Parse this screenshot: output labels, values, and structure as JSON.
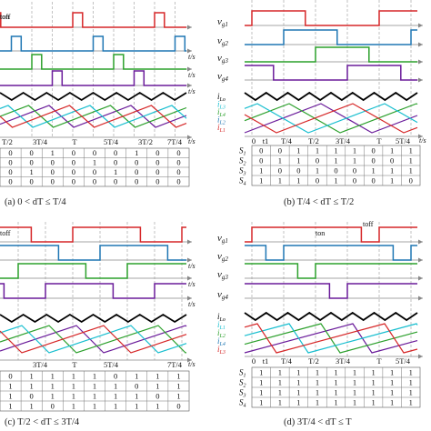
{
  "colors": {
    "red": "#d62728",
    "blue": "#1f77b4",
    "green": "#2ca02c",
    "purple": "#6a1b9a",
    "cyan": "#17becf",
    "black": "#000000",
    "axis": "#888888",
    "dash": "#9a9a9a"
  },
  "panels": [
    {
      "id": "a",
      "caption": "(a) 0 < dT ≤ T/4",
      "signal_labels": [],
      "current_labels": [],
      "time_unit": "t/s",
      "ton_label": "",
      "toff_label": "",
      "time_ticks": [
        "T/2",
        "3T/4",
        "T",
        "5T/4",
        "3T/2",
        "7T/4"
      ],
      "switch_labels": [],
      "table": [
        [
          "0",
          "0",
          "1",
          "0",
          "0",
          "0",
          "1",
          "0",
          "0"
        ],
        [
          "0",
          "0",
          "0",
          "0",
          "1",
          "0",
          "0",
          "0",
          "0"
        ],
        [
          "0",
          "1",
          "0",
          "0",
          "0",
          "1",
          "0",
          "0",
          "0"
        ],
        [
          "0",
          "0",
          "0",
          "0",
          "0",
          "0",
          "0",
          "0",
          "0"
        ]
      ]
    },
    {
      "id": "b",
      "caption": "(b) T/4 < dT ≤ T/2",
      "signal_labels": [
        "vg1",
        "vg2",
        "vg3",
        "vg4"
      ],
      "current_labels": [
        "iLo",
        "iL3",
        "iL4",
        "iL2",
        "iL1"
      ],
      "time_unit": "t/s",
      "ton_label": "ton",
      "toff_label": "toff",
      "time_ticks": [
        "0",
        "t1",
        "T/4",
        "T/2",
        "3T/4",
        "T",
        "5T/4"
      ],
      "switch_labels": [
        "S1",
        "S2",
        "S3",
        "S4"
      ],
      "table": [
        [
          "0",
          "0",
          "1",
          "1",
          "1",
          "1",
          "0",
          "1",
          "1"
        ],
        [
          "0",
          "1",
          "1",
          "0",
          "1",
          "1",
          "0",
          "0",
          "1"
        ],
        [
          "1",
          "0",
          "0",
          "1",
          "0",
          "0",
          "1",
          "1",
          "1"
        ],
        [
          "1",
          "1",
          "1",
          "0",
          "1",
          "0",
          "0",
          "1",
          "0"
        ]
      ]
    },
    {
      "id": "c",
      "caption": "(c) T/2 < dT ≤ 3T/4",
      "signal_labels": [],
      "current_labels": [],
      "time_unit": "t/s",
      "ton_label": "",
      "toff_label": "toff",
      "time_ticks": [
        "3T/4",
        "T",
        "5T/4",
        "7T/4"
      ],
      "switch_labels": [],
      "table": [
        [
          "0",
          "1",
          "1",
          "1",
          "1",
          "0",
          "1",
          "1",
          "1"
        ],
        [
          "1",
          "1",
          "1",
          "1",
          "1",
          "1",
          "0",
          "1",
          "1"
        ],
        [
          "1",
          "0",
          "1",
          "1",
          "1",
          "1",
          "1",
          "0",
          "1"
        ],
        [
          "1",
          "1",
          "0",
          "1",
          "1",
          "1",
          "1",
          "1",
          "0"
        ]
      ]
    },
    {
      "id": "d",
      "caption": "(d) 3T/4 < dT ≤ T",
      "signal_labels": [
        "vg1",
        "vg2",
        "vg3",
        "vg4"
      ],
      "current_labels": [
        "iLo",
        "iL1",
        "iL2",
        "iL4",
        "iL3"
      ],
      "time_unit": "",
      "ton_label": "ton",
      "toff_label": "toff",
      "time_ticks": [
        "0",
        "t1",
        "T/4",
        "T/2",
        "3T/4",
        "T",
        "5T/4"
      ],
      "switch_labels": [
        "S1",
        "S2",
        "S3",
        "S4"
      ],
      "table": [
        [
          "1",
          "1",
          "1",
          "1",
          "1",
          "1",
          "1",
          "1",
          "1"
        ],
        [
          "1",
          "1",
          "1",
          "1",
          "1",
          "1",
          "1",
          "1",
          "1"
        ],
        [
          "1",
          "1",
          "1",
          "1",
          "1",
          "1",
          "1",
          "1",
          "1"
        ],
        [
          "1",
          "1",
          "1",
          "1",
          "1",
          "1",
          "1",
          "1",
          "1"
        ]
      ]
    }
  ]
}
